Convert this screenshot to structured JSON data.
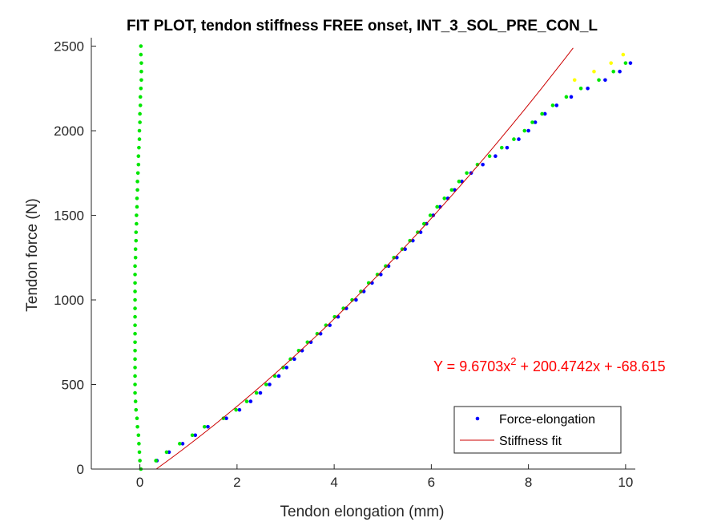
{
  "chart_data": {
    "type": "scatter",
    "title": "FIT PLOT, tendon stiffness FREE onset, INT_3_SOL_PRE_CON_L",
    "xlabel": "Tendon elongation (mm)",
    "ylabel": "Tendon force (N)",
    "xlim": [
      -1,
      10.2
    ],
    "ylim": [
      0,
      2550
    ],
    "xticks": [
      0,
      2,
      4,
      6,
      8,
      10
    ],
    "yticks": [
      0,
      500,
      1000,
      1500,
      2000,
      2500
    ],
    "grid": false,
    "legend_position": "bottom-right",
    "legend": [
      "Force-elongation",
      "Stiffness fit"
    ],
    "equation": {
      "prefix": "Y = 9.6703x",
      "exponent": "2",
      "suffix": " + 200.4742x + -68.615"
    },
    "colors": {
      "force_elongation": "#0000ff",
      "green_trace": "#00e600",
      "yellow_trace": "#ffff00",
      "fit": "#cc0000",
      "equation": "#ff0000"
    },
    "series": [
      {
        "name": "Force-elongation",
        "marker": "dot",
        "color": "#0000ff",
        "x": [
          0.35,
          0.6,
          0.88,
          1.14,
          1.4,
          1.78,
          2.05,
          2.28,
          2.48,
          2.67,
          2.86,
          3.02,
          3.18,
          3.34,
          3.52,
          3.72,
          3.91,
          4.08,
          4.25,
          4.45,
          4.61,
          4.78,
          4.96,
          5.12,
          5.29,
          5.46,
          5.62,
          5.78,
          5.9,
          6.04,
          6.18,
          6.34,
          6.48,
          6.63,
          6.82,
          7.06,
          7.32,
          7.56,
          7.8,
          8.0,
          8.14,
          8.34,
          8.58,
          8.88,
          9.22,
          9.58,
          9.88,
          10.1
        ],
        "y": [
          50,
          100,
          150,
          200,
          250,
          300,
          350,
          400,
          450,
          500,
          550,
          600,
          650,
          700,
          750,
          800,
          850,
          900,
          950,
          1000,
          1050,
          1100,
          1150,
          1200,
          1250,
          1300,
          1350,
          1400,
          1450,
          1500,
          1550,
          1600,
          1650,
          1700,
          1750,
          1800,
          1850,
          1900,
          1950,
          2000,
          2050,
          2100,
          2150,
          2200,
          2250,
          2300,
          2350,
          2400
        ]
      },
      {
        "name": "",
        "marker": "dot",
        "color": "#00e600",
        "x": [
          0.33,
          0.55,
          0.82,
          1.08,
          1.33,
          1.72,
          1.98,
          2.2,
          2.4,
          2.6,
          2.78,
          2.95,
          3.1,
          3.27,
          3.45,
          3.65,
          3.83,
          4.01,
          4.19,
          4.37,
          4.55,
          4.71,
          4.89,
          5.06,
          5.23,
          5.4,
          5.56,
          5.72,
          5.85,
          5.98,
          6.12,
          6.27,
          6.42,
          6.57,
          6.73,
          6.95,
          7.2,
          7.45,
          7.7,
          7.92,
          8.08,
          8.28,
          8.5,
          8.78,
          9.08,
          9.45,
          9.75,
          10.0
        ],
        "y": [
          50,
          100,
          150,
          200,
          250,
          300,
          350,
          400,
          450,
          500,
          550,
          600,
          650,
          700,
          750,
          800,
          850,
          900,
          950,
          1000,
          1050,
          1100,
          1150,
          1200,
          1250,
          1300,
          1350,
          1400,
          1450,
          1500,
          1550,
          1600,
          1650,
          1700,
          1750,
          1800,
          1850,
          1900,
          1950,
          2000,
          2050,
          2100,
          2150,
          2200,
          2250,
          2300,
          2350,
          2400
        ]
      },
      {
        "name": "",
        "marker": "dot",
        "color": "#ffff00",
        "x": [
          8.95,
          9.35,
          9.7,
          9.95
        ],
        "y": [
          2300,
          2350,
          2400,
          2450
        ]
      },
      {
        "name": "",
        "marker": "dot",
        "color": "#00e600",
        "x": [
          0.02,
          0.0,
          -0.01,
          -0.02,
          -0.03,
          -0.05,
          -0.06,
          -0.08,
          -0.09,
          -0.1,
          -0.1,
          -0.1,
          -0.1,
          -0.1,
          -0.1,
          -0.1,
          -0.1,
          -0.1,
          -0.1,
          -0.1,
          -0.1,
          -0.1,
          -0.1,
          -0.1,
          -0.1,
          -0.09,
          -0.09,
          -0.08,
          -0.08,
          -0.07,
          -0.07,
          -0.06,
          -0.06,
          -0.05,
          -0.05,
          -0.04,
          -0.03,
          -0.03,
          -0.02,
          -0.01,
          -0.01,
          0.0,
          0.0,
          0.01,
          0.01,
          0.02,
          0.03,
          0.03,
          0.03,
          0.02,
          0.02
        ],
        "y": [
          0,
          50,
          100,
          150,
          200,
          250,
          300,
          350,
          400,
          450,
          500,
          550,
          600,
          650,
          700,
          750,
          800,
          850,
          900,
          950,
          1000,
          1050,
          1100,
          1150,
          1200,
          1250,
          1300,
          1350,
          1400,
          1450,
          1500,
          1550,
          1600,
          1650,
          1700,
          1750,
          1800,
          1850,
          1900,
          1950,
          2000,
          2050,
          2100,
          2150,
          2200,
          2250,
          2300,
          2350,
          2400,
          2450,
          2500
        ]
      },
      {
        "name": "Stiffness fit",
        "type": "line",
        "color": "#cc0000",
        "coefficients": [
          9.6703,
          200.4742,
          -68.615
        ],
        "x_range": [
          0.34,
          8.92
        ]
      }
    ]
  }
}
